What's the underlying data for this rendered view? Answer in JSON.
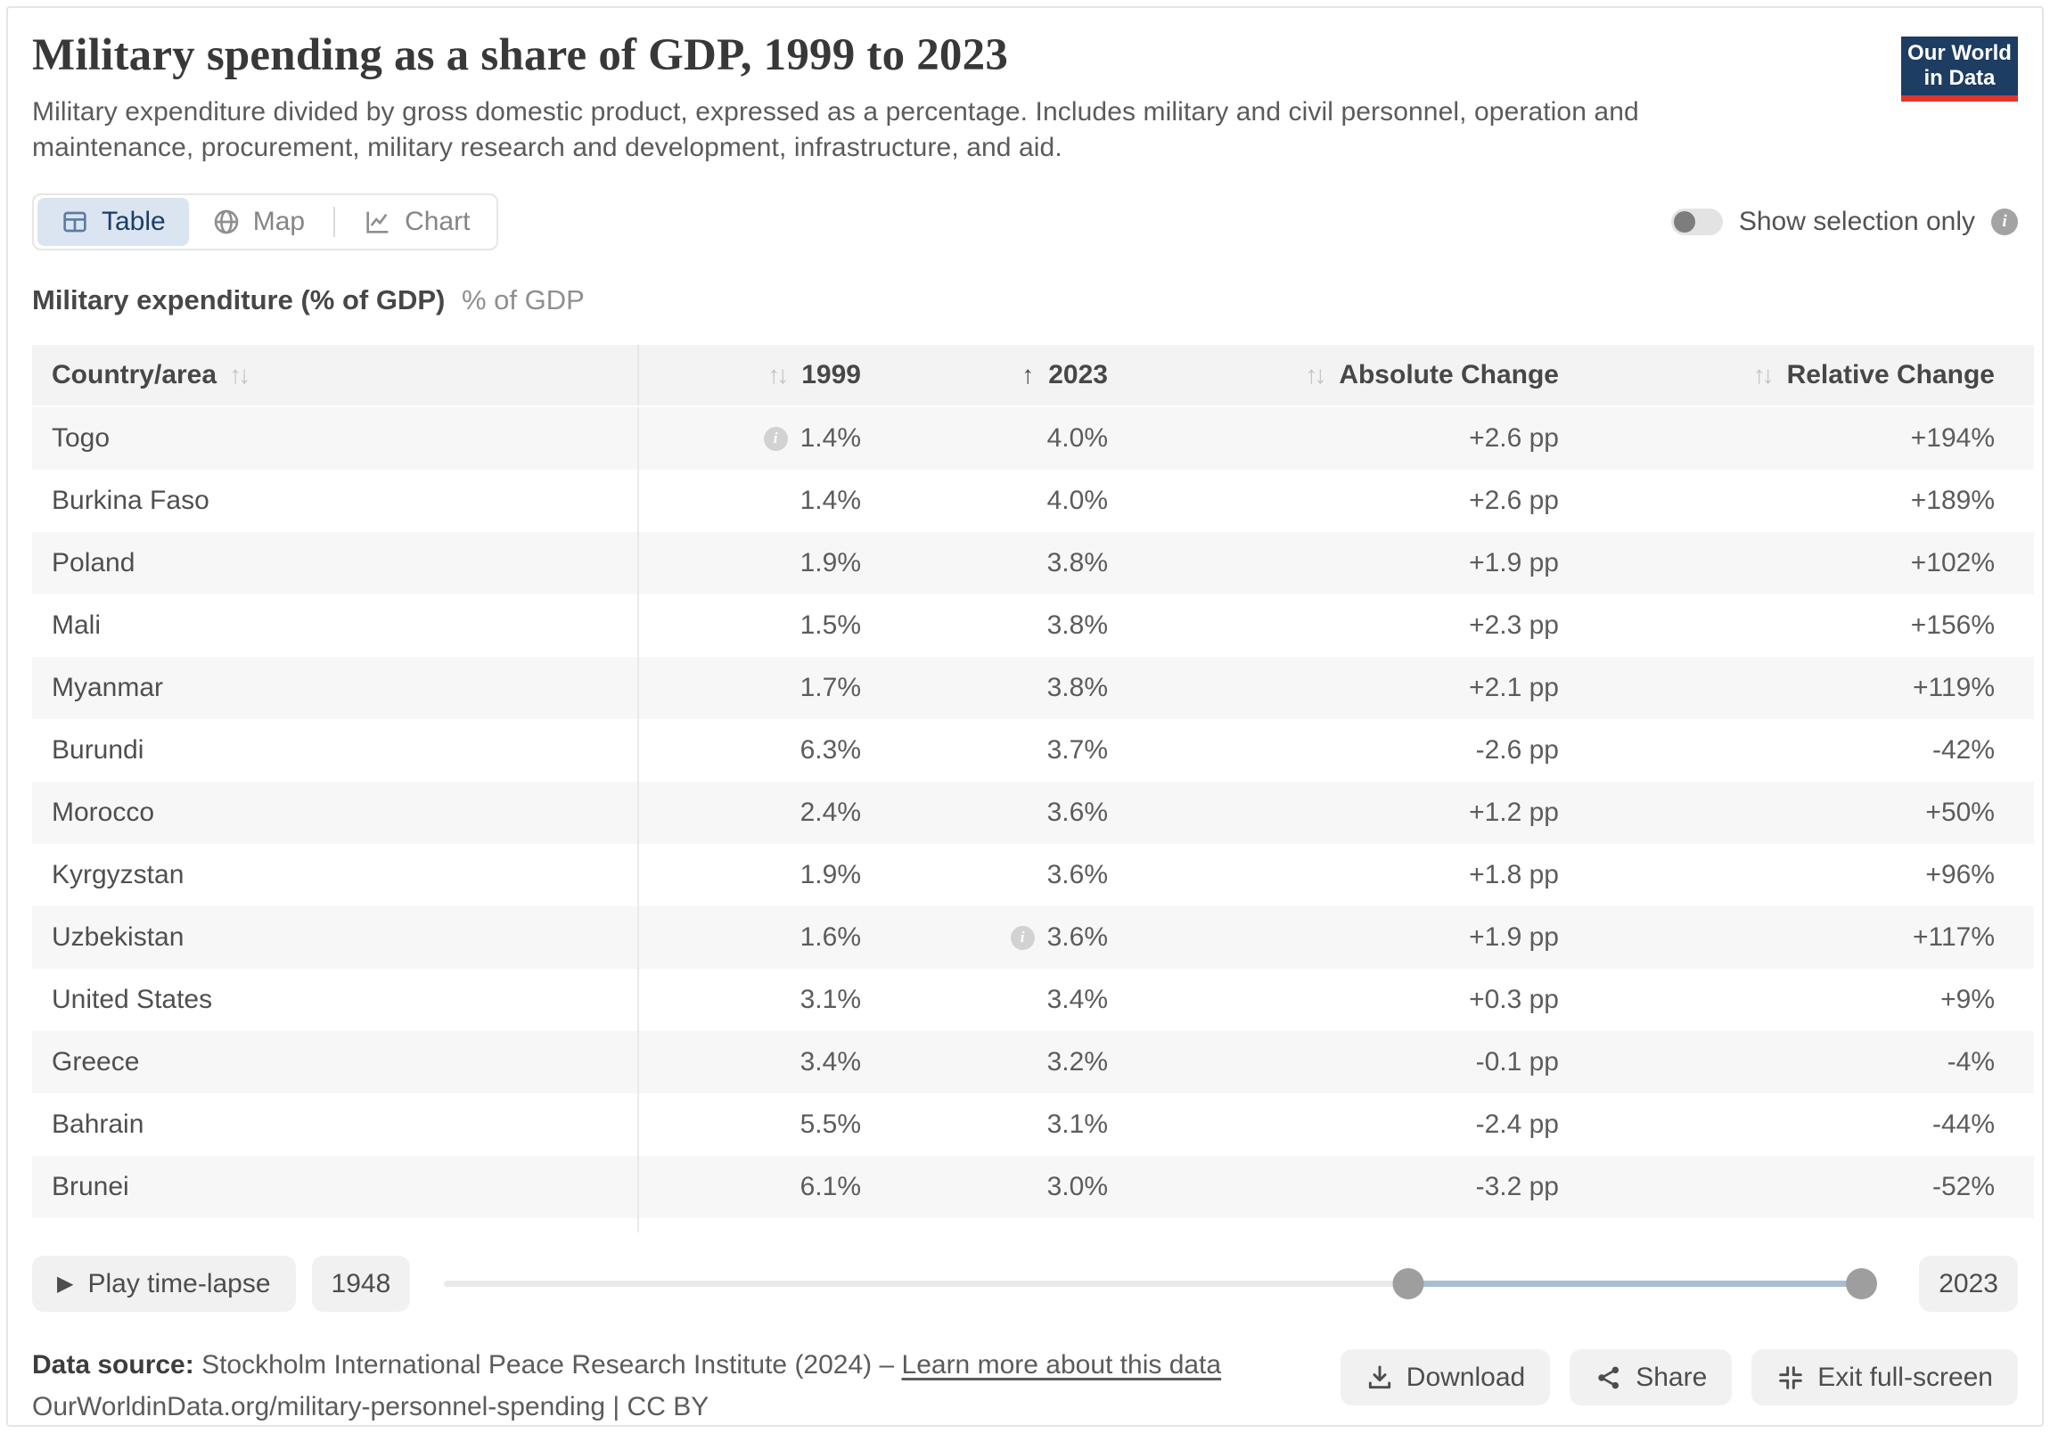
{
  "header": {
    "title": "Military spending as a share of GDP, 1999 to 2023",
    "subtitle": "Military expenditure divided by gross domestic product, expressed as a percentage. Includes military and civil personnel, operation and maintenance, procurement, military research and development, infrastructure, and aid.",
    "logo_line1": "Our World",
    "logo_line2": "in Data"
  },
  "tabs": {
    "table": "Table",
    "map": "Map",
    "chart": "Chart",
    "active": "Table"
  },
  "toggle": {
    "label": "Show selection only",
    "state": "off"
  },
  "measure": {
    "bold": "Military expenditure (% of GDP)",
    "unit": "% of GDP"
  },
  "table": {
    "columns": {
      "country": "Country/area",
      "y1999": "1999",
      "y2023": "2023",
      "abs": "Absolute Change",
      "rel": "Relative Change"
    },
    "sort": {
      "column": "2023",
      "direction": "asc"
    },
    "rows": [
      {
        "country": "Togo",
        "y1999": "1.4%",
        "y2023": "4.0%",
        "abs": "+2.6 pp",
        "rel": "+194%",
        "info_1999": true
      },
      {
        "country": "Burkina Faso",
        "y1999": "1.4%",
        "y2023": "4.0%",
        "abs": "+2.6 pp",
        "rel": "+189%"
      },
      {
        "country": "Poland",
        "y1999": "1.9%",
        "y2023": "3.8%",
        "abs": "+1.9 pp",
        "rel": "+102%"
      },
      {
        "country": "Mali",
        "y1999": "1.5%",
        "y2023": "3.8%",
        "abs": "+2.3 pp",
        "rel": "+156%"
      },
      {
        "country": "Myanmar",
        "y1999": "1.7%",
        "y2023": "3.8%",
        "abs": "+2.1 pp",
        "rel": "+119%"
      },
      {
        "country": "Burundi",
        "y1999": "6.3%",
        "y2023": "3.7%",
        "abs": "-2.6 pp",
        "rel": "-42%"
      },
      {
        "country": "Morocco",
        "y1999": "2.4%",
        "y2023": "3.6%",
        "abs": "+1.2 pp",
        "rel": "+50%"
      },
      {
        "country": "Kyrgyzstan",
        "y1999": "1.9%",
        "y2023": "3.6%",
        "abs": "+1.8 pp",
        "rel": "+96%"
      },
      {
        "country": "Uzbekistan",
        "y1999": "1.6%",
        "y2023": "3.6%",
        "abs": "+1.9 pp",
        "rel": "+117%",
        "info_2023": true
      },
      {
        "country": "United States",
        "y1999": "3.1%",
        "y2023": "3.4%",
        "abs": "+0.3 pp",
        "rel": "+9%"
      },
      {
        "country": "Greece",
        "y1999": "3.4%",
        "y2023": "3.2%",
        "abs": "-0.1 pp",
        "rel": "-4%"
      },
      {
        "country": "Bahrain",
        "y1999": "5.5%",
        "y2023": "3.1%",
        "abs": "-2.4 pp",
        "rel": "-44%"
      },
      {
        "country": "Brunei",
        "y1999": "6.1%",
        "y2023": "3.0%",
        "abs": "-3.2 pp",
        "rel": "-52%"
      }
    ]
  },
  "timeline": {
    "play_label": "Play time-lapse",
    "start_year": "1948",
    "end_year": "2023",
    "handle_start": "1999",
    "handle_end": "2023"
  },
  "footer": {
    "source_label": "Data source:",
    "source_text": "Stockholm International Peace Research Institute (2024) – ",
    "source_link": "Learn more about this data",
    "line2": "OurWorldinData.org/military-personnel-spending | CC BY"
  },
  "actions": {
    "download": "Download",
    "share": "Share",
    "exit": "Exit full-screen"
  },
  "icons": {
    "sort_both": "↑↓",
    "sort_asc": "↑",
    "info": "i",
    "play": "▶"
  },
  "colors": {
    "navy": "#1d3d63",
    "red": "#e0362c",
    "active_tab_bg": "#dbe5f1",
    "stripe": "#f7f7f7",
    "slider_active": "#a9bdd3"
  }
}
